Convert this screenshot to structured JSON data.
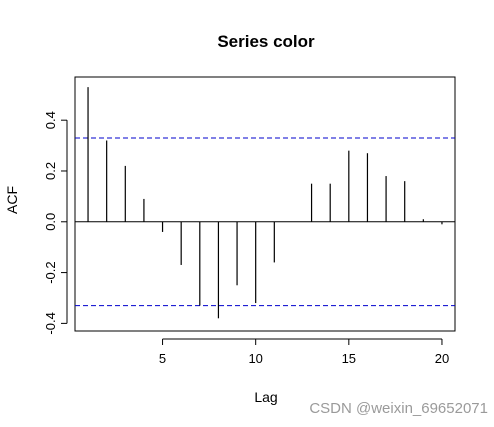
{
  "chart_data": {
    "type": "bar",
    "title": "Series color",
    "xlabel": "Lag",
    "ylabel": "ACF",
    "x": [
      1,
      2,
      3,
      4,
      5,
      6,
      7,
      8,
      9,
      10,
      11,
      12,
      13,
      14,
      15,
      16,
      17,
      18,
      19,
      20
    ],
    "values": [
      0.53,
      0.32,
      0.22,
      0.09,
      -0.04,
      -0.17,
      -0.33,
      -0.38,
      -0.25,
      -0.32,
      -0.16,
      0.0,
      0.15,
      0.15,
      0.28,
      0.27,
      0.18,
      0.16,
      0.01,
      -0.01
    ],
    "confidence_bound": 0.33,
    "xlim": [
      0.3,
      20.7
    ],
    "ylim": [
      -0.43,
      0.57
    ],
    "x_ticks": [
      5,
      10,
      15,
      20
    ],
    "y_ticks": [
      -0.4,
      -0.2,
      0.0,
      0.2,
      0.4
    ],
    "x_tick_labels": [
      "5",
      "10",
      "15",
      "20"
    ],
    "y_tick_labels": [
      "-0.4",
      "-0.2",
      "0.0",
      "0.2",
      "0.4"
    ],
    "grid": false,
    "colors": {
      "bars": "#000000",
      "bounds": "#0000cd",
      "zero_line": "#000000"
    }
  },
  "watermark": "CSDN @weixin_69652071"
}
